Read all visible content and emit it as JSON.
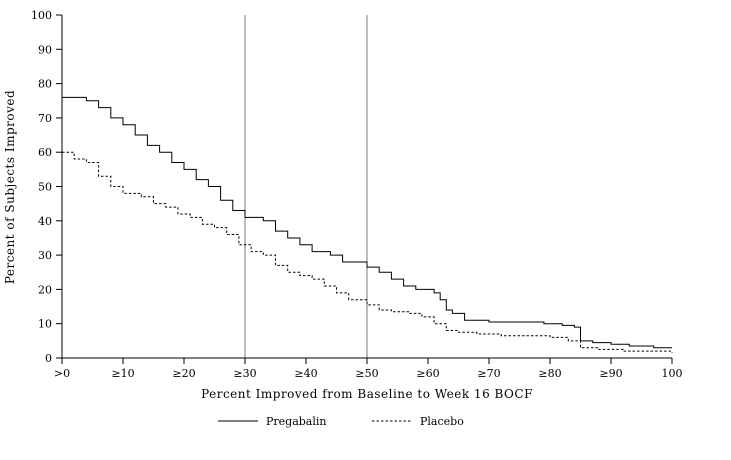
{
  "chart_data": {
    "type": "line",
    "title": "",
    "xlabel": "Percent Improved from Baseline to Week 16 BOCF",
    "ylabel": "Percent of Subjects Improved",
    "xlim": [
      0,
      100
    ],
    "ylim": [
      0,
      100
    ],
    "x_tick_values": [
      0,
      10,
      20,
      30,
      40,
      50,
      60,
      70,
      80,
      90,
      100
    ],
    "x_tick_labels": [
      ">0",
      "≥10",
      "≥20",
      "≥30",
      "≥40",
      "≥50",
      "≥60",
      "≥70",
      "≥80",
      "≥90",
      "100"
    ],
    "y_tick_values": [
      0,
      10,
      20,
      30,
      40,
      50,
      60,
      70,
      80,
      90,
      100
    ],
    "y_tick_labels": [
      "0",
      "10",
      "20",
      "30",
      "40",
      "50",
      "60",
      "70",
      "80",
      "90",
      "100"
    ],
    "grid": false,
    "legend_position": "bottom",
    "reference_lines_x": [
      30,
      50
    ],
    "reference_line_color": "#7a7a7a",
    "axis_color": "#000000",
    "series": [
      {
        "name": "Pregabalin",
        "style": "solid",
        "color": "#000000",
        "x": [
          0,
          4,
          6,
          8,
          10,
          12,
          14,
          16,
          18,
          20,
          22,
          24,
          26,
          28,
          30,
          33,
          35,
          37,
          39,
          41,
          44,
          46,
          50,
          52,
          54,
          56,
          58,
          61,
          62,
          63,
          64,
          66,
          70,
          75,
          79,
          82,
          84,
          85,
          87,
          90,
          93,
          97,
          100
        ],
        "y": [
          76,
          75,
          73,
          70,
          68,
          65,
          62,
          60,
          57,
          55,
          52,
          50,
          46,
          43,
          41,
          40,
          37,
          35,
          33,
          31,
          30,
          28,
          26.5,
          25,
          23,
          21,
          20,
          19,
          17,
          14,
          13,
          11,
          10.5,
          10.5,
          10,
          9.5,
          9,
          5,
          4.5,
          4,
          3.5,
          3,
          3
        ]
      },
      {
        "name": "Placebo",
        "style": "dashed",
        "color": "#000000",
        "x": [
          0,
          2,
          4,
          6,
          8,
          10,
          13,
          15,
          17,
          19,
          21,
          23,
          25,
          27,
          29,
          31,
          33,
          35,
          37,
          39,
          41,
          43,
          45,
          47,
          50,
          52,
          54,
          57,
          59,
          61,
          63,
          65,
          68,
          72,
          76,
          80,
          83,
          85,
          88,
          92,
          96,
          100
        ],
        "y": [
          60,
          58,
          57,
          53,
          50,
          48,
          47,
          45,
          44,
          42,
          41,
          39,
          38,
          36,
          33,
          31,
          30,
          27,
          25,
          24,
          23,
          21,
          19,
          17,
          15.5,
          14,
          13.5,
          13,
          12,
          10,
          8,
          7.5,
          7,
          6.5,
          6.5,
          6,
          5,
          3,
          2.5,
          2,
          2,
          1.5
        ]
      }
    ]
  }
}
